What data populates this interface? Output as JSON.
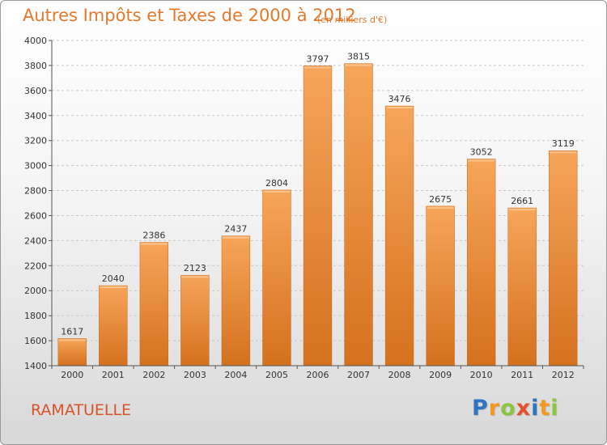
{
  "chart_data": {
    "type": "bar",
    "title": "Autres Impôts et Taxes de 2000 à 2012",
    "subtitle": "(en milliers d'€)",
    "categories": [
      "2000",
      "2001",
      "2002",
      "2003",
      "2004",
      "2005",
      "2006",
      "2007",
      "2008",
      "2009",
      "2010",
      "2011",
      "2012"
    ],
    "values": [
      1617,
      2040,
      2386,
      2123,
      2437,
      2804,
      3797,
      3815,
      3476,
      2675,
      3052,
      2661,
      3119
    ],
    "yticks": [
      1400,
      1600,
      1800,
      2000,
      2200,
      2400,
      2600,
      2800,
      3000,
      3200,
      3400,
      3600,
      3800,
      4000
    ],
    "ylim": [
      1400,
      4000
    ],
    "xlabel": "",
    "ylabel": "",
    "grid": true,
    "bar_color": "#f0963f"
  },
  "location": "RAMATUELLE",
  "logo": {
    "letters": [
      "P",
      "r",
      "o",
      "x",
      "i",
      "t",
      "i"
    ],
    "colors": [
      "#2f74c0",
      "#f39a1e",
      "#8cc63f",
      "#e4512b",
      "#2f74c0",
      "#f39a1e",
      "#8cc63f"
    ]
  }
}
